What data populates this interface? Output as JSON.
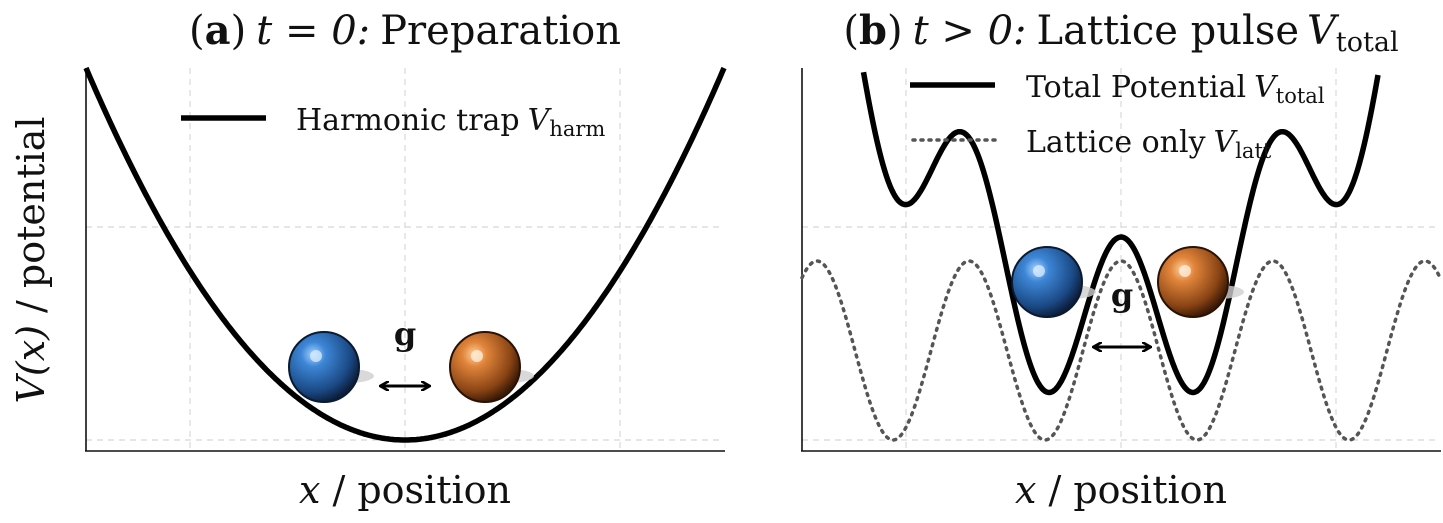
{
  "panel_a": {
    "title_paren_open": "(",
    "title_letter": "a",
    "title_paren_close": ")",
    "title_math": "t = 0:",
    "title_text": "Preparation",
    "legend": {
      "label": "Harmonic trap",
      "symbol": "V",
      "subscript": "harm"
    },
    "coupling_label": "g",
    "xlabel_var": "x",
    "xlabel_text": "/ position",
    "particle_left_color": "#3a7cc8",
    "particle_right_color": "#d2772f"
  },
  "panel_b": {
    "title_paren_open": "(",
    "title_letter": "b",
    "title_paren_close": ")",
    "title_math": "t > 0:",
    "title_text": "Lattice pulse",
    "title_symbol": "V",
    "title_subscript": "total",
    "legend": [
      {
        "label": "Total Potential",
        "symbol": "V",
        "subscript": "total",
        "style": "solid"
      },
      {
        "label": "Lattice only",
        "symbol": "V",
        "subscript": "latt",
        "style": "dotted"
      }
    ],
    "coupling_label": "g",
    "xlabel_var": "x",
    "xlabel_text": "/ position",
    "particle_left_color": "#3a7cc8",
    "particle_right_color": "#d2772f"
  },
  "ylabel_var": "V(x)",
  "ylabel_text": "/ potential"
}
